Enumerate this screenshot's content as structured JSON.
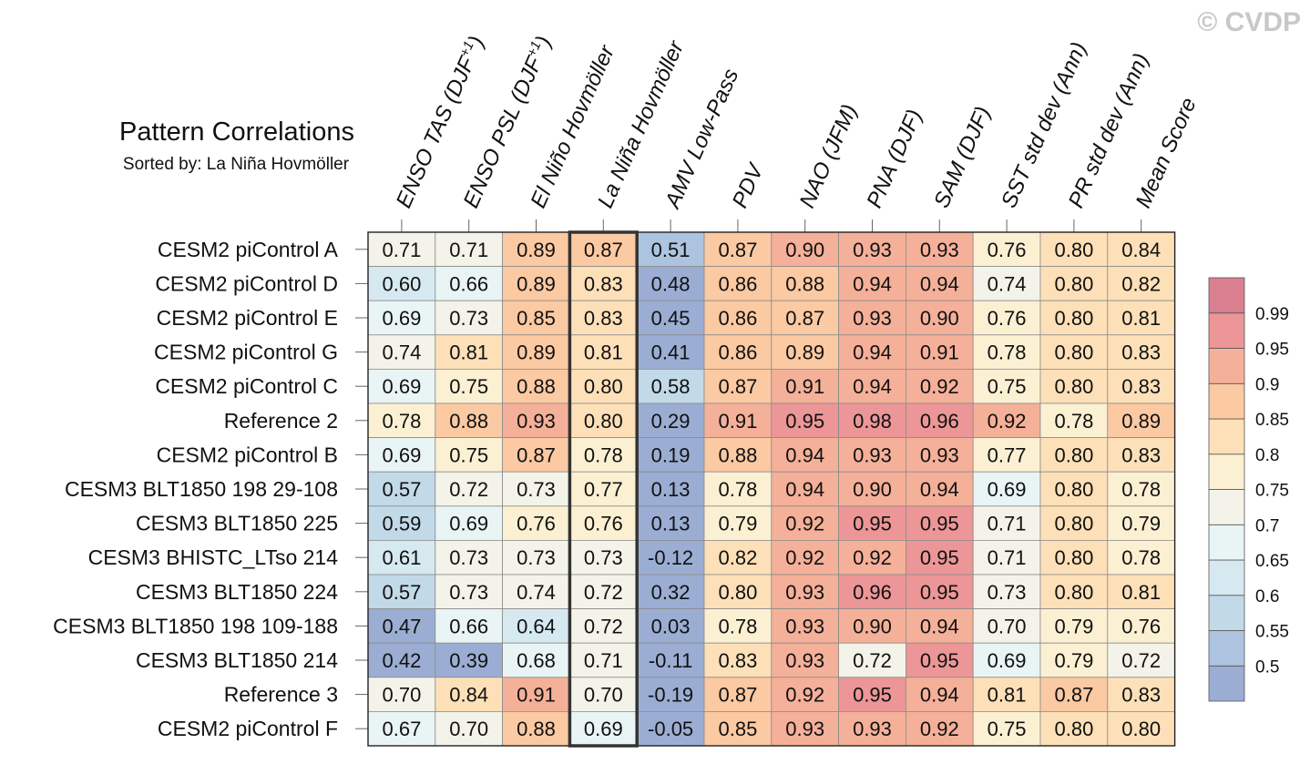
{
  "watermark": "© CVDP",
  "chart_data": {
    "type": "heatmap",
    "title": "Pattern Correlations",
    "subtitle": "Sorted by: La Niña Hovmöller",
    "columns": [
      {
        "label": "ENSO TAS (DJF",
        "sup": "+1",
        "suffix": ")"
      },
      {
        "label": "ENSO PSL (DJF",
        "sup": "+1",
        "suffix": ")"
      },
      {
        "label": "El Niño Hovmöller",
        "sup": "",
        "suffix": ""
      },
      {
        "label": "La Niña Hovmöller",
        "sup": "",
        "suffix": ""
      },
      {
        "label": "AMV Low-Pass",
        "sup": "",
        "suffix": ""
      },
      {
        "label": "PDV",
        "sup": "",
        "suffix": ""
      },
      {
        "label": "NAO (JFM)",
        "sup": "",
        "suffix": ""
      },
      {
        "label": "PNA (DJF)",
        "sup": "",
        "suffix": ""
      },
      {
        "label": "SAM (DJF)",
        "sup": "",
        "suffix": ""
      },
      {
        "label": "SST std dev (Ann)",
        "sup": "",
        "suffix": ""
      },
      {
        "label": "PR std dev (Ann)",
        "sup": "",
        "suffix": ""
      },
      {
        "label": "Mean Score",
        "sup": "",
        "suffix": ""
      }
    ],
    "highlighted_column": 3,
    "rows": [
      {
        "name": "CESM2 piControl A",
        "values": [
          "0.71",
          "0.71",
          "0.89",
          "0.87",
          "0.51",
          "0.87",
          "0.90",
          "0.93",
          "0.93",
          "0.76",
          "0.80",
          "0.84"
        ]
      },
      {
        "name": "CESM2 piControl D",
        "values": [
          "0.60",
          "0.66",
          "0.89",
          "0.83",
          "0.48",
          "0.86",
          "0.88",
          "0.94",
          "0.94",
          "0.74",
          "0.80",
          "0.82"
        ]
      },
      {
        "name": "CESM2 piControl E",
        "values": [
          "0.69",
          "0.73",
          "0.85",
          "0.83",
          "0.45",
          "0.86",
          "0.87",
          "0.93",
          "0.90",
          "0.76",
          "0.80",
          "0.81"
        ]
      },
      {
        "name": "CESM2 piControl G",
        "values": [
          "0.74",
          "0.81",
          "0.89",
          "0.81",
          "0.41",
          "0.86",
          "0.89",
          "0.94",
          "0.91",
          "0.78",
          "0.80",
          "0.83"
        ]
      },
      {
        "name": "CESM2 piControl C",
        "values": [
          "0.69",
          "0.75",
          "0.88",
          "0.80",
          "0.58",
          "0.87",
          "0.91",
          "0.94",
          "0.92",
          "0.75",
          "0.80",
          "0.83"
        ]
      },
      {
        "name": "Reference 2",
        "values": [
          "0.78",
          "0.88",
          "0.93",
          "0.80",
          "0.29",
          "0.91",
          "0.95",
          "0.98",
          "0.96",
          "0.92",
          "0.78",
          "0.89"
        ]
      },
      {
        "name": "CESM2 piControl B",
        "values": [
          "0.69",
          "0.75",
          "0.87",
          "0.78",
          "0.19",
          "0.88",
          "0.94",
          "0.93",
          "0.93",
          "0.77",
          "0.80",
          "0.83"
        ]
      },
      {
        "name": "CESM3 BLT1850 198 29-108",
        "values": [
          "0.57",
          "0.72",
          "0.73",
          "0.77",
          "0.13",
          "0.78",
          "0.94",
          "0.90",
          "0.94",
          "0.69",
          "0.80",
          "0.78"
        ]
      },
      {
        "name": "CESM3 BLT1850 225",
        "values": [
          "0.59",
          "0.69",
          "0.76",
          "0.76",
          "0.13",
          "0.79",
          "0.92",
          "0.95",
          "0.95",
          "0.71",
          "0.80",
          "0.79"
        ]
      },
      {
        "name": "CESM3 BHISTC_LTso 214",
        "values": [
          "0.61",
          "0.73",
          "0.73",
          "0.73",
          "-0.12",
          "0.82",
          "0.92",
          "0.92",
          "0.95",
          "0.71",
          "0.80",
          "0.78"
        ]
      },
      {
        "name": "CESM3 BLT1850 224",
        "values": [
          "0.57",
          "0.73",
          "0.74",
          "0.72",
          "0.32",
          "0.80",
          "0.93",
          "0.96",
          "0.95",
          "0.73",
          "0.80",
          "0.81"
        ]
      },
      {
        "name": "CESM3 BLT1850 198 109-188",
        "values": [
          "0.47",
          "0.66",
          "0.64",
          "0.72",
          "0.03",
          "0.78",
          "0.93",
          "0.90",
          "0.94",
          "0.70",
          "0.79",
          "0.76"
        ]
      },
      {
        "name": "CESM3 BLT1850 214",
        "values": [
          "0.42",
          "0.39",
          "0.68",
          "0.71",
          "-0.11",
          "0.83",
          "0.93",
          "0.72",
          "0.95",
          "0.69",
          "0.79",
          "0.72"
        ]
      },
      {
        "name": "Reference 3",
        "values": [
          "0.70",
          "0.84",
          "0.91",
          "0.70",
          "-0.19",
          "0.87",
          "0.92",
          "0.95",
          "0.94",
          "0.81",
          "0.87",
          "0.83"
        ]
      },
      {
        "name": "CESM2 piControl F",
        "values": [
          "0.67",
          "0.70",
          "0.88",
          "0.69",
          "-0.05",
          "0.85",
          "0.93",
          "0.93",
          "0.92",
          "0.75",
          "0.80",
          "0.80"
        ]
      }
    ],
    "colorbar": {
      "levels": [
        0.5,
        0.55,
        0.6,
        0.65,
        0.7,
        0.75,
        0.8,
        0.85,
        0.9,
        0.95,
        0.99
      ],
      "tick_labels": [
        "0.5",
        "0.55",
        "0.6",
        "0.65",
        "0.7",
        "0.75",
        "0.8",
        "0.85",
        "0.9",
        "0.95",
        "0.99"
      ],
      "colors": [
        "#9badd3",
        "#adc4e0",
        "#c2d9e8",
        "#d6e9f0",
        "#e9f4f5",
        "#f4f3e9",
        "#fcf0d3",
        "#fde0b8",
        "#fbc9a2",
        "#f5b099",
        "#ec9697",
        "#d97f8f"
      ]
    }
  }
}
